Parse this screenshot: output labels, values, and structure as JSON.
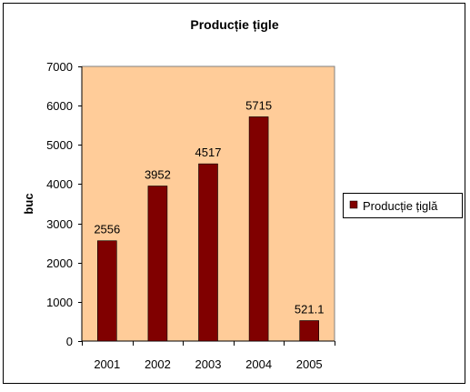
{
  "chart_data": {
    "type": "bar",
    "title": "Producție țigle",
    "xlabel": "",
    "ylabel": "buc",
    "categories": [
      "2001",
      "2002",
      "2003",
      "2004",
      "2005"
    ],
    "series": [
      {
        "name": "Producție țiglă",
        "values": [
          2556,
          3952,
          4517,
          5715,
          521.1
        ]
      }
    ],
    "data_labels": [
      "2556",
      "3952",
      "4517",
      "5715",
      "521.1"
    ],
    "ylim": [
      0,
      7000
    ],
    "yticks": [
      0,
      1000,
      2000,
      3000,
      4000,
      5000,
      6000,
      7000
    ],
    "grid": false,
    "legend_position": "right",
    "colors": {
      "bar": "#800000",
      "plot_background": "#FFCC99",
      "outer_background": "#FFFFFF",
      "border": "#000000"
    }
  }
}
